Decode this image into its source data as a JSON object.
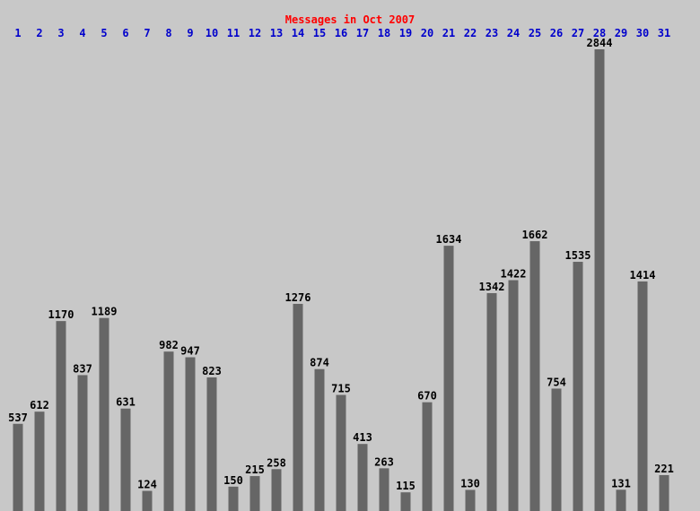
{
  "chart_data": {
    "type": "bar",
    "title": "Messages in Oct 2007",
    "categories": [
      "1",
      "2",
      "3",
      "4",
      "5",
      "6",
      "7",
      "8",
      "9",
      "10",
      "11",
      "12",
      "13",
      "14",
      "15",
      "16",
      "17",
      "18",
      "19",
      "20",
      "21",
      "22",
      "23",
      "24",
      "25",
      "26",
      "27",
      "28",
      "29",
      "30",
      "31"
    ],
    "values": [
      537,
      612,
      1170,
      837,
      1189,
      631,
      124,
      982,
      947,
      823,
      150,
      215,
      258,
      1276,
      874,
      715,
      413,
      263,
      115,
      670,
      1634,
      130,
      1342,
      1422,
      1662,
      754,
      1535,
      2844,
      131,
      1414,
      221
    ],
    "color": "#666666"
  }
}
